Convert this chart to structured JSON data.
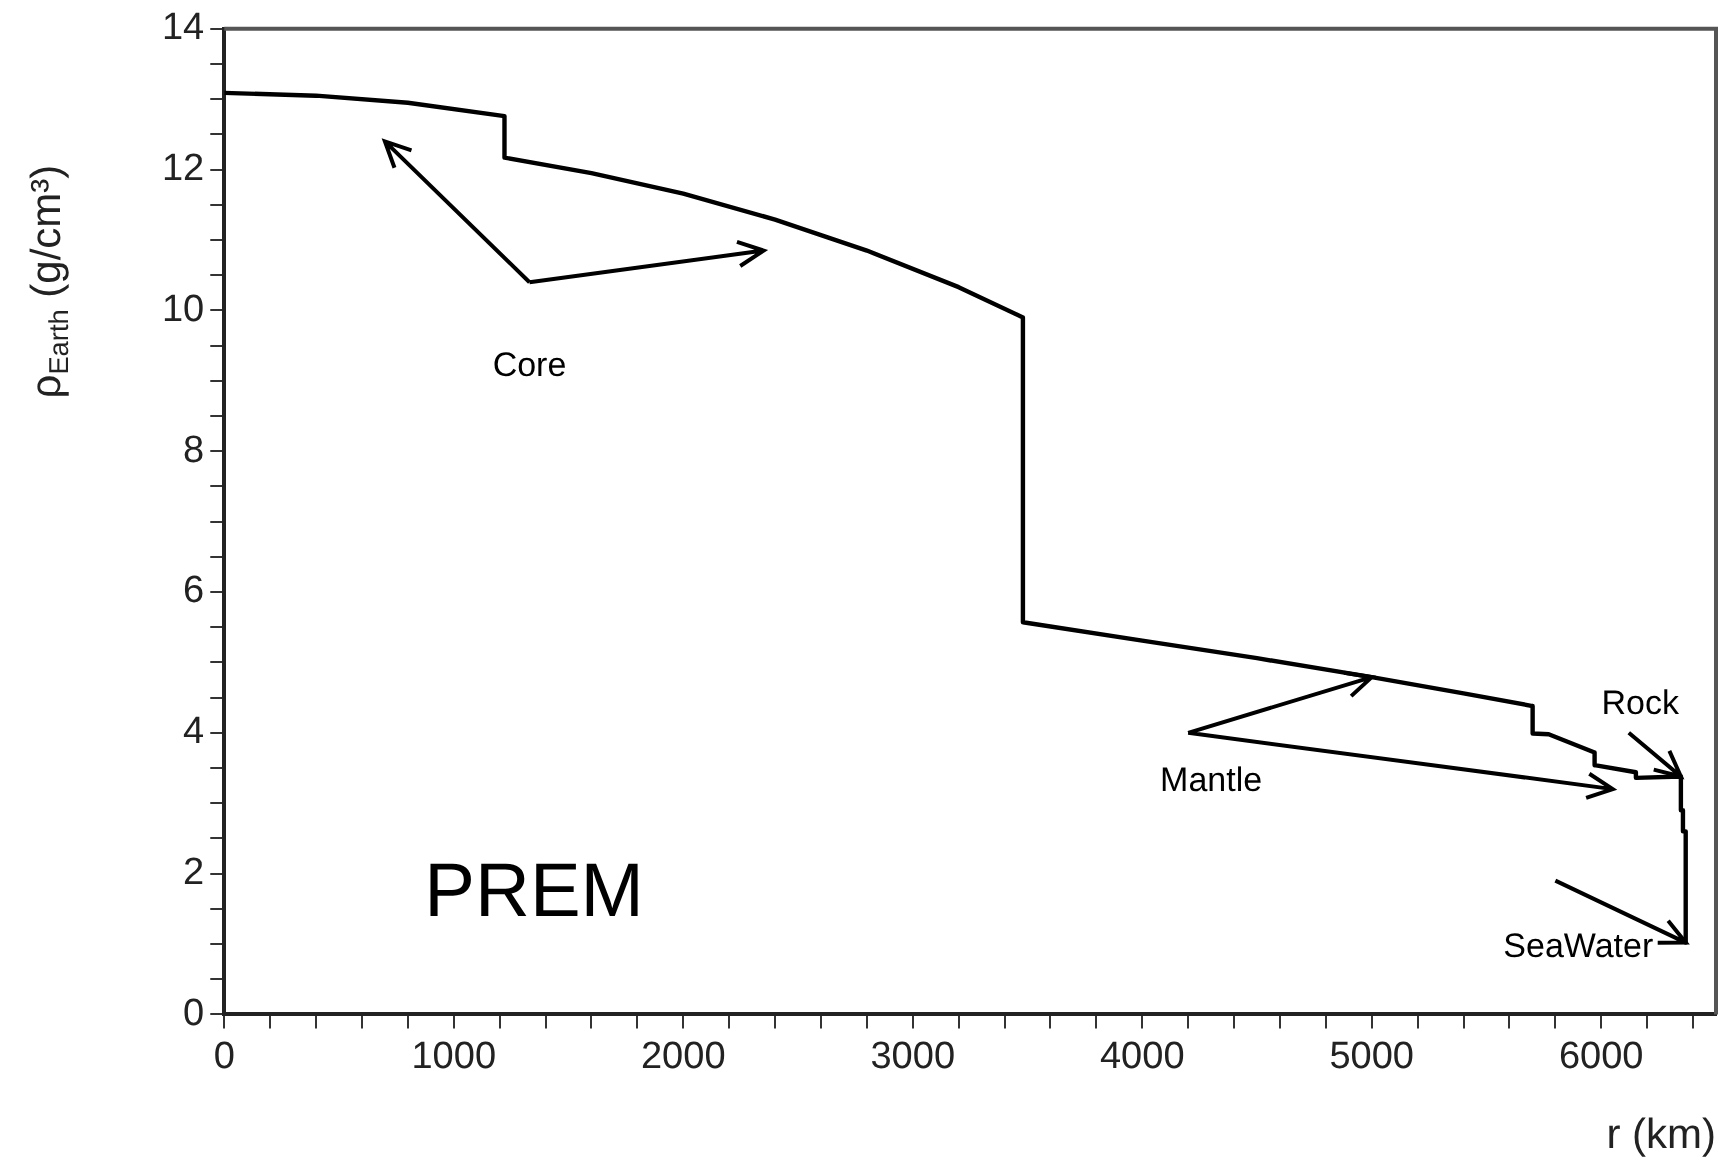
{
  "chart_data": {
    "type": "line",
    "xlabel": "r (km)",
    "ylabel": "ρ$_{Earth}$ (g/cm³)",
    "annotations": [
      "Core",
      {
        "text": "Mantle",
        "x": 5000,
        "y": 4.79
      },
      {
        "text": "Rock",
        "x": 6347,
        "y": 3.38
      },
      {
        "text": "SeaWater",
        "x": 6368,
        "y": 1.02
      },
      "PREM"
    ],
    "xlim": [
      0,
      6500
    ],
    "ylim": [
      0,
      14
    ],
    "xticks": [
      0,
      {
        "value": 200,
        "label": null
      },
      {
        "value": 400,
        "label": null
      },
      {
        "value": 600,
        "label": null
      },
      {
        "value": 800,
        "label": null
      },
      1000,
      {
        "value": 1200,
        "label": null
      },
      {
        "value": 1400,
        "label": null
      },
      {
        "value": 1600,
        "label": null
      },
      {
        "value": 1800,
        "label": null
      },
      2000,
      {
        "value": 2200,
        "label": null
      },
      {
        "value": 2400,
        "label": null
      },
      {
        "value": 2600,
        "label": null
      },
      {
        "value": 2800,
        "label": null
      },
      3000,
      {
        "value": 3200,
        "label": null
      },
      {
        "value": 3400,
        "label": null
      },
      {
        "value": 3600,
        "label": null
      },
      {
        "value": 3800,
        "label": null
      },
      4000,
      {
        "value": 4200,
        "label": null
      },
      {
        "value": 4400,
        "label": null
      },
      {
        "value": 4600,
        "label": null
      },
      {
        "value": 4800,
        "label": null
      },
      5000,
      {
        "value": 5200,
        "label": null
      },
      {
        "value": 5400,
        "label": null
      },
      {
        "value": 5600,
        "label": null
      },
      {
        "value": 5800,
        "label": null
      },
      6000,
      {
        "value": 6200,
        "label": null
      },
      {
        "value": 6400,
        "label": null
      }
    ],
    "yticks": [
      0,
      {
        "value": 0.5,
        "label": null
      },
      {
        "value": 1,
        "label": null
      },
      {
        "value": 1.5,
        "label": null
      },
      2,
      {
        "value": 2.5,
        "label": null
      },
      {
        "value": 3,
        "label": null
      },
      {
        "value": 3.5,
        "label": null
      },
      4,
      {
        "value": 4.5,
        "label": null
      },
      {
        "value": 5,
        "label": null
      },
      {
        "value": 5.5,
        "label": null
      },
      6,
      {
        "value": 6.5,
        "label": null
      },
      {
        "value": 7,
        "label": null
      },
      {
        "value": 7.5,
        "label": null
      },
      8,
      {
        "value": 8.5,
        "label": null
      },
      {
        "value": 9,
        "label": null
      },
      {
        "value": 9.5,
        "label": null
      },
      10,
      {
        "value": 10.5,
        "label": null
      },
      {
        "value": 11,
        "label": null
      },
      {
        "value": 11.5,
        "label": null
      },
      12,
      {
        "value": 12.5,
        "label": null
      },
      {
        "value": 13,
        "label": null
      },
      {
        "value": 13.5,
        "label": null
      },
      14
    ],
    "marker": "none",
    "line_style": "solid",
    "series": [
      {
        "color": "#000000",
        "x": [
          0,
          400,
          800,
          1221,
          1221,
          1600,
          2000,
          2400,
          2800,
          3200,
          3480,
          3480,
          4000,
          4500,
          5000,
          5400,
          5701,
          5701,
          5771,
          5771,
          5971,
          5971,
          6151,
          6151,
          6347,
          6347,
          6356,
          6356,
          6368,
          6368,
          6371
        ],
        "values": [
          13.09,
          13.05,
          12.95,
          12.76,
          12.17,
          11.95,
          11.66,
          11.29,
          10.85,
          10.33,
          9.9,
          5.57,
          5.31,
          5.06,
          4.79,
          4.56,
          4.38,
          3.99,
          3.98,
          3.98,
          3.72,
          3.54,
          3.44,
          3.36,
          3.38,
          2.9,
          2.9,
          2.6,
          2.6,
          1.02,
          1.02
        ]
      }
    ]
  }
}
